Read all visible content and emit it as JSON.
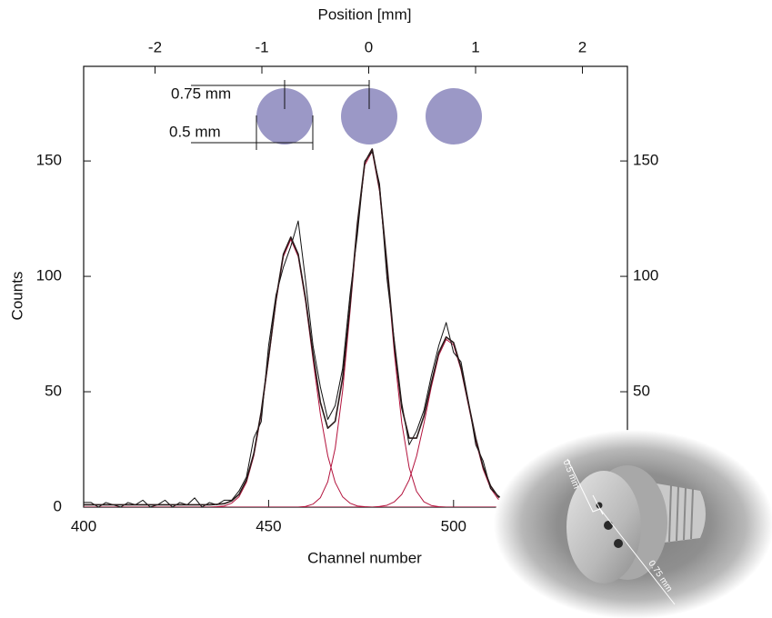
{
  "chart_data": {
    "type": "line",
    "xlabel": "Channel number",
    "ylabel": "Counts",
    "x2label": "Position [mm]",
    "annotations": [
      "0.75 mm",
      "0.5 mm"
    ],
    "x": [
      400,
      402,
      404,
      406,
      408,
      410,
      412,
      414,
      416,
      418,
      420,
      422,
      424,
      426,
      428,
      430,
      432,
      434,
      436,
      438,
      440,
      442,
      444,
      446,
      448,
      450,
      452,
      454,
      456,
      458,
      460,
      462,
      464,
      466,
      468,
      470,
      472,
      474,
      476,
      478,
      480,
      482,
      484,
      486,
      488,
      490,
      492,
      494,
      496,
      498,
      500,
      502,
      504,
      506,
      508,
      510,
      512,
      514,
      516,
      518,
      520,
      522,
      524,
      526,
      528,
      530,
      532,
      534,
      536,
      538,
      540,
      542,
      544,
      546
    ],
    "series": [
      {
        "color": "#111111",
        "width": 1,
        "values": [
          2,
          2,
          0,
          2,
          1,
          0,
          2,
          1,
          3,
          0,
          1,
          3,
          0,
          2,
          1,
          4,
          0,
          2,
          1,
          3,
          3,
          7,
          13,
          30,
          37,
          70,
          92,
          104,
          113,
          124,
          98,
          70,
          52,
          38,
          44,
          60,
          92,
          118,
          150,
          154,
          140,
          99,
          72,
          45,
          27,
          33,
          42,
          57,
          70,
          80,
          67,
          63,
          46,
          27,
          20,
          8,
          5,
          3,
          1,
          4,
          2,
          1,
          3,
          0,
          2,
          1,
          3,
          1,
          2,
          0,
          2,
          1,
          2,
          1
        ]
      },
      {
        "color": "#2a1a1a",
        "width": 1.6,
        "values": [
          1,
          1,
          1,
          1,
          1,
          1,
          1,
          1,
          1,
          1,
          1,
          1,
          1,
          1,
          1,
          1,
          1,
          1,
          1.2,
          1.5,
          2.7,
          5.5,
          11.7,
          23.2,
          41.3,
          65,
          90,
          109.6,
          117,
          109.6,
          90.3,
          66.3,
          45.4,
          34.2,
          37.2,
          55.8,
          87.3,
          122.8,
          149.4,
          155.2,
          138.1,
          105.2,
          69.9,
          43,
          29.9,
          29.9,
          39.6,
          53.9,
          67,
          73.7,
          71.3,
          60.6,
          45.3,
          29.8,
          17.4,
          9.2,
          4.6,
          2.4,
          1.5,
          1.1,
          1,
          1,
          1,
          1,
          1,
          1,
          1,
          1,
          1,
          1,
          1,
          1,
          1,
          1
        ]
      },
      {
        "color": "#b3123c",
        "width": 1,
        "values": [
          0,
          0,
          0,
          0,
          0,
          0,
          0,
          0,
          0,
          0,
          0,
          0,
          0,
          0,
          0,
          0,
          0,
          0,
          0.2,
          0.5,
          1.7,
          4.5,
          10.7,
          22.2,
          40.3,
          64,
          89,
          108.6,
          116,
          108.6,
          89,
          64,
          40.3,
          22.2,
          10.7,
          4.5,
          1.7,
          0.5,
          0.2,
          0,
          0,
          0,
          0,
          0,
          0,
          0,
          0,
          0,
          0,
          0,
          0,
          0,
          0,
          0,
          0,
          0,
          0,
          0,
          0,
          0,
          0,
          0,
          0,
          0,
          0,
          0,
          0,
          0,
          0,
          0,
          0,
          0,
          0,
          0
        ]
      },
      {
        "color": "#b3123c",
        "width": 1,
        "values": [
          0,
          0,
          0,
          0,
          0,
          0,
          0,
          0,
          0,
          0,
          0,
          0,
          0,
          0,
          0,
          0,
          0,
          0,
          0,
          0,
          0,
          0,
          0,
          0,
          0,
          0,
          0,
          0,
          0,
          0,
          0.3,
          1.3,
          4.1,
          11,
          25.5,
          50.3,
          84.6,
          121.3,
          148.2,
          154.2,
          136.8,
          103.4,
          66.6,
          36.5,
          17.1,
          6.8,
          2.3,
          0.7,
          0.2,
          0,
          0,
          0,
          0,
          0,
          0,
          0,
          0,
          0,
          0,
          0,
          0,
          0,
          0,
          0,
          0,
          0,
          0,
          0,
          0,
          0,
          0,
          0,
          0,
          0
        ]
      },
      {
        "color": "#b3123c",
        "width": 1,
        "values": [
          0,
          0,
          0,
          0,
          0,
          0,
          0,
          0,
          0,
          0,
          0,
          0,
          0,
          0,
          0,
          0,
          0,
          0,
          0,
          0,
          0,
          0,
          0,
          0,
          0,
          0,
          0,
          0,
          0,
          0,
          0,
          0,
          0,
          0,
          0,
          0,
          0,
          0,
          0,
          0,
          0.3,
          0.8,
          2.3,
          5.5,
          11.8,
          22.1,
          36.3,
          52.2,
          65.8,
          72.7,
          70.3,
          59.6,
          44.3,
          28.8,
          16.4,
          8.2,
          3.6,
          1.4,
          0.5,
          0.1,
          0,
          0,
          0,
          0,
          0,
          0,
          0,
          0,
          0,
          0,
          0,
          0,
          0,
          0
        ]
      }
    ],
    "xlim": [
      400,
      547
    ],
    "xticks": [
      400,
      450,
      500
    ],
    "x2lim": [
      -2.668,
      2.421
    ],
    "x2ticks": [
      -2,
      -1,
      0,
      1,
      2
    ],
    "ylim": [
      0,
      191
    ],
    "yticks": [
      0,
      50,
      100,
      150
    ],
    "y2lim": [
      0,
      191
    ],
    "y2ticks": [
      50,
      100,
      150
    ]
  },
  "photo_labels": [
    "0.5 mm",
    "0.75 mm"
  ]
}
